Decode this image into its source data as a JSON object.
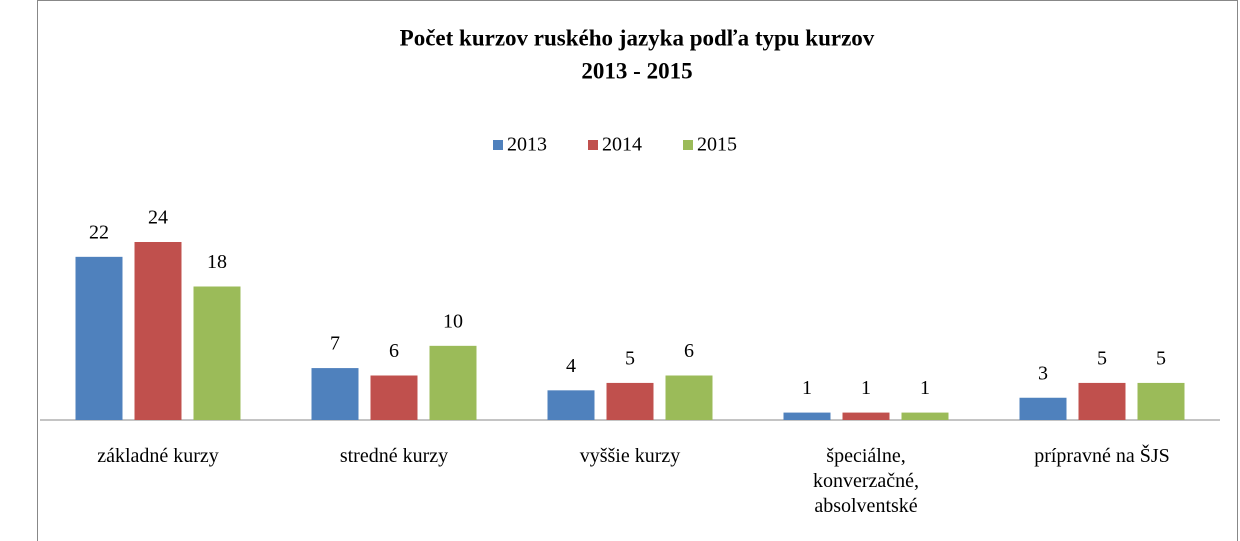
{
  "chart_data": {
    "type": "bar",
    "title": "Počet kurzov ruského jazyka podľa typu kurzov",
    "subtitle": "2013 - 2015",
    "categories": [
      "základné kurzy",
      "stredné kurzy",
      "vyššie kurzy",
      "špeciálne, konverzačné, absolventské",
      "prípravné na ŠJS"
    ],
    "series": [
      {
        "name": "2013",
        "color": "#4f81bd",
        "values": [
          22,
          7,
          4,
          1,
          3
        ]
      },
      {
        "name": "2014",
        "color": "#c0504d",
        "values": [
          24,
          6,
          5,
          1,
          5
        ]
      },
      {
        "name": "2015",
        "color": "#9bbb59",
        "values": [
          18,
          10,
          6,
          1,
          5
        ]
      }
    ],
    "legend": "top"
  }
}
